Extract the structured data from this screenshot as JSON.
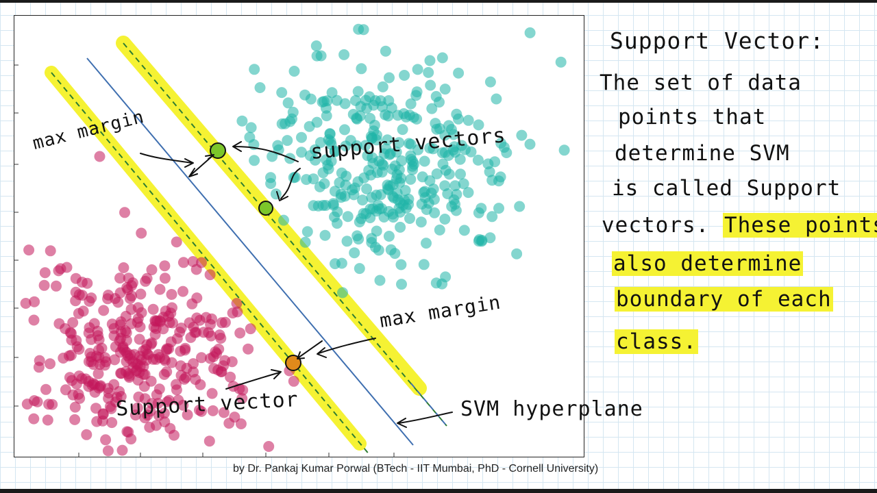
{
  "diagram": {
    "type": "svm-margin-illustration",
    "colors": {
      "class_a": "#1fb5a8",
      "class_b": "#c2185b",
      "highlight": "#f5f233",
      "hyperplane": "#3f6fb0",
      "margin_line": "#2e7d32",
      "support_green": "#7cc62a",
      "support_orange": "#e08a1b"
    },
    "labels": {
      "max_margin_top": "max margin",
      "support_vectors": "support vectors",
      "max_margin_bottom": "max margin",
      "support_vector": "Support vector",
      "svm_hyperplane": "SVM hyperplane"
    }
  },
  "notes": {
    "title": "Support Vector:",
    "line1": "The set of data",
    "line2": "points that",
    "line3": "determine SVM",
    "line4": "is called Support",
    "line5_plain": "vectors.",
    "line5_highlight": "These points",
    "line6": "also determine",
    "line7": "boundary of each",
    "line8": "class."
  },
  "credit": "by Dr. Pankaj Kumar Porwal (BTech - IIT Mumbai, PhD - Cornell University)"
}
